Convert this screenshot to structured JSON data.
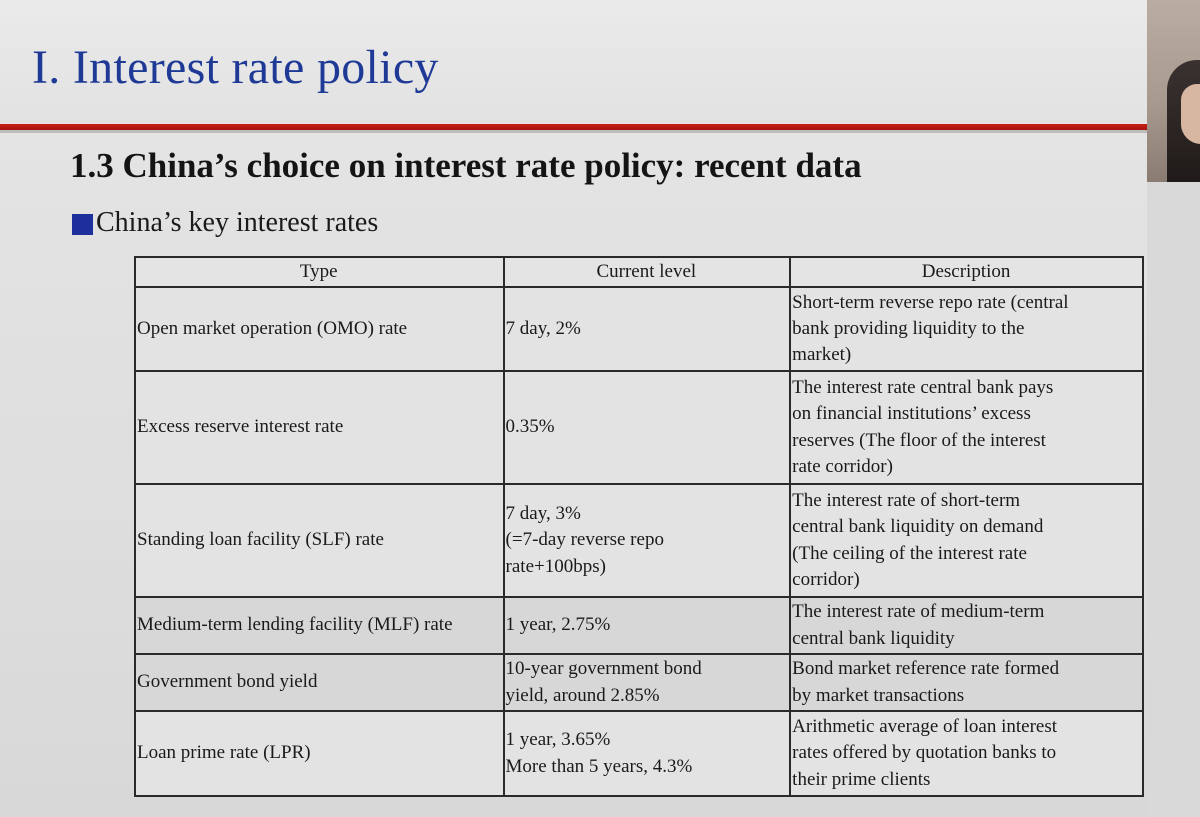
{
  "slide": {
    "title": "I. Interest rate policy",
    "section_heading": "1.3 China’s choice on interest rate policy: recent data",
    "bullet_text": "China’s key interest rates"
  },
  "table": {
    "headers": [
      "Type",
      "Current level",
      "Description"
    ],
    "rows": [
      {
        "type": "Open market operation (OMO) rate",
        "level": [
          "7 day, 2%"
        ],
        "description": [
          "Short-term reverse repo rate (central",
          "bank providing liquidity to the",
          "market)"
        ]
      },
      {
        "type": "Excess reserve interest rate",
        "level": [
          "0.35%"
        ],
        "description": [
          "The interest rate central bank pays",
          "on financial institutions’ excess",
          "reserves (The floor of the interest",
          "rate corridor)"
        ]
      },
      {
        "type": "Standing loan facility (SLF) rate",
        "level": [
          "7 day, 3%",
          "(=7-day reverse repo",
          "rate+100bps)"
        ],
        "description": [
          "The interest rate of short-term",
          "central bank liquidity on demand",
          "(The ceiling of the interest rate",
          "corridor)"
        ]
      },
      {
        "type": "Medium-term lending facility (MLF) rate",
        "level": [
          "1 year, 2.75%"
        ],
        "description": [
          "The interest rate of medium-term",
          "central bank liquidity"
        ]
      },
      {
        "type": "Government bond yield",
        "level": [
          "10-year government bond",
          "yield, around 2.85%"
        ],
        "description": [
          "Bond market reference rate formed",
          "by market transactions"
        ]
      },
      {
        "type": "Loan prime rate (LPR)",
        "level": [
          "1 year, 3.65%",
          "More than 5 years, 4.3%"
        ],
        "description": [
          "Arithmetic average of loan interest",
          "rates offered by quotation banks to",
          "their prime clients"
        ]
      }
    ]
  },
  "colors": {
    "title_blue": "#1f3a96",
    "rule_red": "#c81e14",
    "bullet_blue": "#1c2f9a"
  }
}
